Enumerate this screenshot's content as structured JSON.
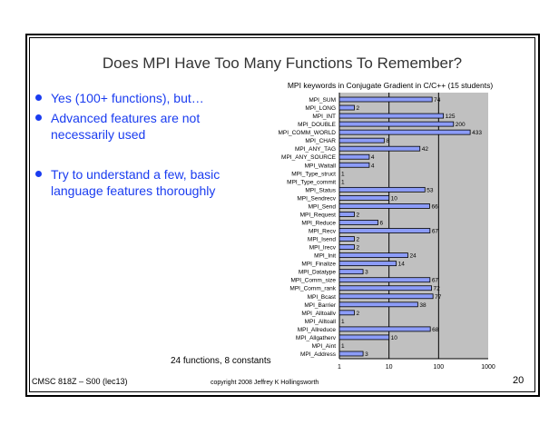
{
  "slide": {
    "title": "Does MPI Have Too Many Functions To Remember?",
    "bullets": [
      "Yes (100+ functions), but…",
      "Advanced features are not necessarily used",
      "Try to understand a few, basic language features thoroughly"
    ],
    "note": "24 functions, 8 constants",
    "footer_left": "CMSC 818Z – S00  (lec13)",
    "footer_center": "copyright 2008 Jeffrey K Hollingsworth",
    "page_number": "20",
    "bullet_color": "#1a3cf0"
  },
  "chart_data": {
    "type": "bar",
    "orientation": "horizontal",
    "title": "MPI keywords in Conjugate Gradient in C/C++ (15 students)",
    "x_scale": "log",
    "xlim": [
      1,
      1000
    ],
    "x_ticks": [
      "1",
      "10",
      "100",
      "1000"
    ],
    "grid": true,
    "bar_color": "#8c9cf8",
    "plot_background": "#c0c0c0",
    "categories": [
      "MPI_SUM",
      "MPI_LONG",
      "MPI_INT",
      "MPI_DOUBLE",
      "MPI_COMM_WORLD",
      "MPI_CHAR",
      "MPI_ANY_TAG",
      "MPI_ANY_SOURCE",
      "MPI_Waitall",
      "MPI_Type_struct",
      "MPI_Type_commit",
      "MPI_Status",
      "MPI_Sendrecv",
      "MPI_Send",
      "MPI_Request",
      "MPI_Reduce",
      "MPI_Recv",
      "MPI_Isend",
      "MPI_Irecv",
      "MPI_Init",
      "MPI_Finalize",
      "MPI_Datatype",
      "MPI_Comm_size",
      "MPI_Comm_rank",
      "MPI_Bcast",
      "MPI_Barrier",
      "MPI_Alltoallv",
      "MPI_Alltoall",
      "MPI_Allreduce",
      "MPI_Allgatherv",
      "MPI_Aint",
      "MPI_Address"
    ],
    "values": [
      74,
      2,
      125,
      200,
      433,
      8,
      42,
      4,
      4,
      1,
      1,
      53,
      10,
      66,
      2,
      6,
      67,
      2,
      2,
      24,
      14,
      3,
      67,
      72,
      77,
      38,
      2,
      1,
      68,
      10,
      1,
      3
    ]
  }
}
